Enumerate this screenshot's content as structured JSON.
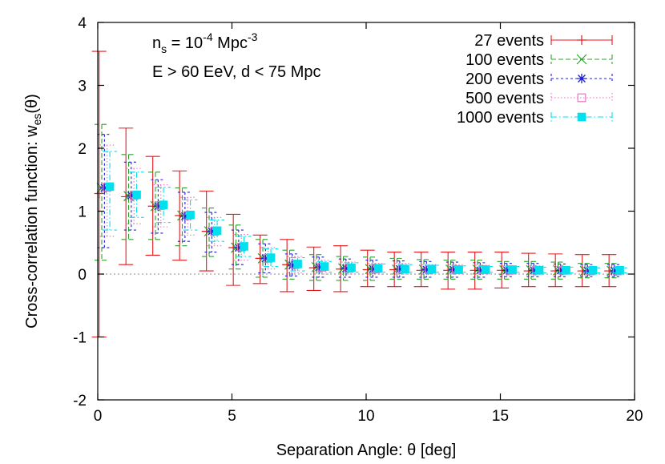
{
  "chart_data": {
    "type": "scatter",
    "title": "",
    "xlabel": "Separation Angle: θ [deg]",
    "ylabel": "Cross-correlation function: w",
    "ylabel_sub": "es",
    "ylabel_tail": "(θ)",
    "xlim": [
      0,
      20
    ],
    "ylim": [
      -2,
      4
    ],
    "xticks": [
      "0",
      "5",
      "10",
      "15",
      "20"
    ],
    "yticks": [
      "-2",
      "-1",
      "0",
      "1",
      "2",
      "3",
      "4"
    ],
    "annotation_line1": {
      "prefix": "n",
      "sub": "s",
      "mid": " = 10",
      "sup": "-4",
      "mid2": " Mpc",
      "sup2": "-3"
    },
    "annotation_line2": "E > 60 EeV, d < 75 Mpc",
    "legend_position": "top-right",
    "reference_line_y": 0,
    "x": [
      0.25,
      1.25,
      2.25,
      3.25,
      4.25,
      5.25,
      6.25,
      7.25,
      8.25,
      9.25,
      10.25,
      11.25,
      12.25,
      13.25,
      14.25,
      15.25,
      16.25,
      17.25,
      18.25,
      19.25
    ],
    "series": [
      {
        "name": "27 events",
        "color": "#e41a1c",
        "marker": "plus",
        "offset": -0.2,
        "values": [
          1.28,
          1.23,
          1.08,
          0.93,
          0.68,
          0.42,
          0.25,
          0.15,
          0.1,
          0.08,
          0.07,
          0.07,
          0.06,
          0.06,
          0.06,
          0.06,
          0.05,
          0.05,
          0.05,
          0.05
        ],
        "lower": [
          -1.0,
          0.15,
          0.3,
          0.22,
          0.05,
          -0.18,
          -0.15,
          -0.28,
          -0.26,
          -0.28,
          -0.2,
          -0.2,
          -0.2,
          -0.24,
          -0.24,
          -0.22,
          -0.2,
          -0.2,
          -0.2,
          -0.2
        ],
        "upper": [
          3.54,
          2.32,
          1.87,
          1.64,
          1.32,
          0.95,
          0.62,
          0.55,
          0.43,
          0.45,
          0.38,
          0.35,
          0.35,
          0.35,
          0.35,
          0.35,
          0.33,
          0.32,
          0.31,
          0.31
        ]
      },
      {
        "name": "100 events",
        "color": "#2ca02c",
        "marker": "cross",
        "offset": -0.1,
        "values": [
          1.37,
          1.24,
          1.08,
          0.93,
          0.68,
          0.42,
          0.25,
          0.15,
          0.11,
          0.09,
          0.08,
          0.07,
          0.07,
          0.07,
          0.07,
          0.06,
          0.06,
          0.06,
          0.05,
          0.05
        ],
        "lower": [
          0.22,
          0.55,
          0.55,
          0.45,
          0.28,
          0.08,
          -0.05,
          -0.08,
          -0.1,
          -0.1,
          -0.1,
          -0.08,
          -0.08,
          -0.08,
          -0.08,
          -0.08,
          -0.08,
          -0.08,
          -0.06,
          -0.06
        ],
        "upper": [
          2.38,
          1.9,
          1.62,
          1.37,
          1.05,
          0.78,
          0.55,
          0.38,
          0.31,
          0.28,
          0.27,
          0.25,
          0.23,
          0.22,
          0.22,
          0.2,
          0.2,
          0.19,
          0.17,
          0.17
        ]
      },
      {
        "name": "200 events",
        "color": "#1f1fd0",
        "marker": "star",
        "offset": 0.0,
        "values": [
          1.37,
          1.25,
          1.08,
          0.92,
          0.68,
          0.42,
          0.25,
          0.14,
          0.11,
          0.09,
          0.08,
          0.08,
          0.07,
          0.07,
          0.06,
          0.06,
          0.06,
          0.06,
          0.05,
          0.05
        ],
        "lower": [
          0.42,
          0.7,
          0.65,
          0.52,
          0.35,
          0.15,
          0.02,
          -0.03,
          -0.05,
          -0.05,
          -0.05,
          -0.05,
          -0.05,
          -0.05,
          -0.05,
          -0.04,
          -0.04,
          -0.04,
          -0.04,
          -0.04
        ],
        "upper": [
          2.22,
          1.78,
          1.5,
          1.3,
          0.98,
          0.7,
          0.48,
          0.32,
          0.27,
          0.24,
          0.22,
          0.21,
          0.2,
          0.19,
          0.18,
          0.17,
          0.17,
          0.16,
          0.15,
          0.15
        ]
      },
      {
        "name": "500 events",
        "color": "#e377c2",
        "marker": "square-open",
        "offset": 0.1,
        "values": [
          1.38,
          1.25,
          1.09,
          0.93,
          0.68,
          0.43,
          0.25,
          0.15,
          0.11,
          0.09,
          0.08,
          0.08,
          0.07,
          0.07,
          0.07,
          0.06,
          0.06,
          0.06,
          0.05,
          0.05
        ],
        "lower": [
          0.6,
          0.8,
          0.75,
          0.62,
          0.45,
          0.22,
          0.08,
          0.02,
          0.0,
          0.0,
          0.0,
          0.0,
          0.0,
          0.0,
          0.0,
          0.0,
          0.0,
          0.0,
          0.0,
          0.0
        ],
        "upper": [
          2.05,
          1.68,
          1.42,
          1.22,
          0.9,
          0.63,
          0.42,
          0.28,
          0.22,
          0.19,
          0.17,
          0.17,
          0.15,
          0.15,
          0.14,
          0.13,
          0.13,
          0.12,
          0.11,
          0.11
        ]
      },
      {
        "name": "1000 events",
        "color": "#00e0ee",
        "marker": "square-filled",
        "offset": 0.2,
        "values": [
          1.39,
          1.26,
          1.1,
          0.94,
          0.69,
          0.44,
          0.26,
          0.16,
          0.12,
          0.1,
          0.09,
          0.08,
          0.08,
          0.07,
          0.07,
          0.07,
          0.06,
          0.06,
          0.06,
          0.06
        ],
        "lower": [
          0.7,
          0.9,
          0.82,
          0.7,
          0.52,
          0.28,
          0.12,
          0.05,
          0.03,
          0.03,
          0.03,
          0.03,
          0.03,
          0.03,
          0.03,
          0.03,
          0.02,
          0.02,
          0.02,
          0.02
        ],
        "upper": [
          1.95,
          1.62,
          1.38,
          1.18,
          0.86,
          0.6,
          0.4,
          0.26,
          0.2,
          0.18,
          0.16,
          0.15,
          0.14,
          0.13,
          0.12,
          0.12,
          0.11,
          0.11,
          0.1,
          0.1
        ]
      }
    ]
  }
}
